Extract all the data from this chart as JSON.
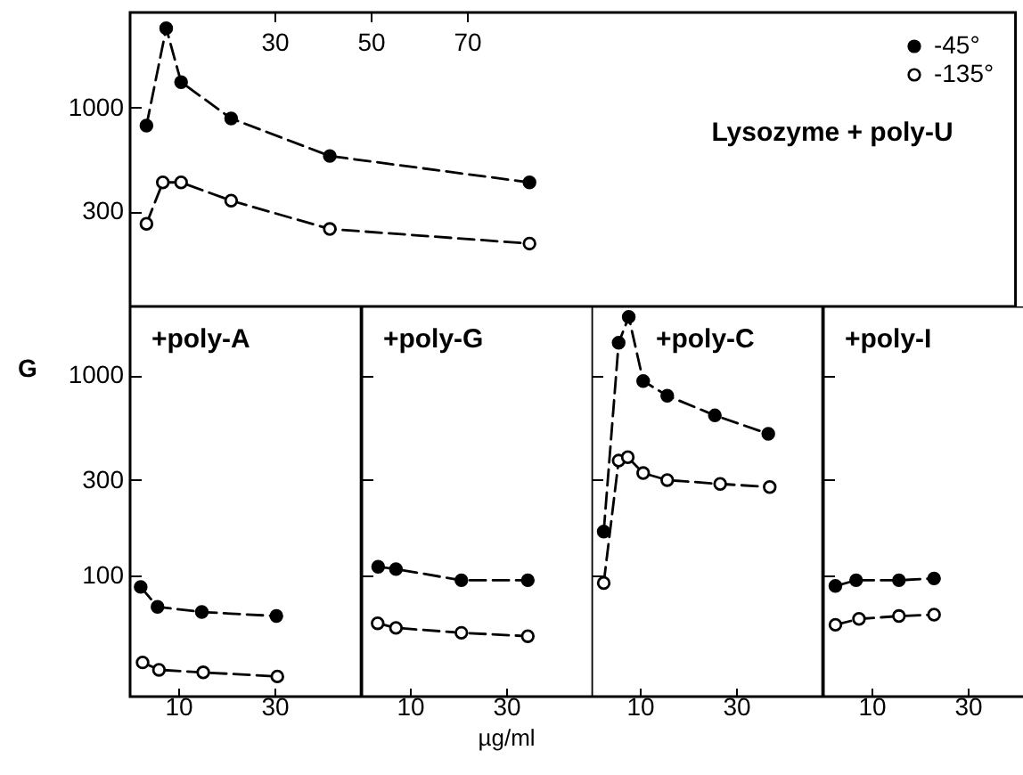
{
  "chart_data": [
    {
      "type": "line",
      "title": "Lysozyme + poly-U",
      "xlim": [
        0,
        184
      ],
      "xticks": [
        30,
        50,
        70
      ],
      "ylim": [
        100,
        3000
      ],
      "yticks": [
        300,
        1000
      ],
      "log": "y",
      "marker": "circle",
      "line_style": "dashed",
      "legend": "top right",
      "series": [
        {
          "name": "-45°",
          "color": "#000000",
          "x": [
            3.4,
            7.5,
            10.6,
            21,
            41.5,
            83
          ],
          "values": [
            810,
            2500,
            1340,
            880,
            570,
            420
          ]
        },
        {
          "name": "-135°",
          "color": "#000000",
          "x": [
            3.4,
            6.8,
            10.6,
            21,
            41.5,
            83
          ],
          "values": [
            260,
            420,
            420,
            340,
            245,
            207
          ]
        }
      ]
    },
    {
      "type": "line",
      "title": "+poly-A",
      "ylabel": "G",
      "xlim": [
        0,
        48
      ],
      "xticks": [
        10,
        30
      ],
      "ylim": [
        25,
        2200
      ],
      "yticks": [
        100,
        300,
        1000
      ],
      "log": "y",
      "marker": "circle",
      "line_style": "dashed",
      "series": [
        {
          "color": "#000000",
          "x": [
            2.2,
            5.7,
            14.9,
            30.4
          ],
          "values": [
            88,
            70,
            66,
            63
          ]
        },
        {
          "color": "#000000",
          "x": [
            2.6,
            6,
            15.2,
            30.6
          ],
          "values": [
            37,
            34,
            33,
            31.5
          ]
        }
      ]
    },
    {
      "type": "line",
      "title": "+poly-G",
      "xlabel": "µg/ml",
      "xlim": [
        0,
        48
      ],
      "xticks": [
        10,
        30
      ],
      "ylim": [
        25,
        2200
      ],
      "yticks": [
        100,
        300,
        1000
      ],
      "log": "y",
      "marker": "circle",
      "line_style": "dashed",
      "tick_labels": "x",
      "series": [
        {
          "color": "#000000",
          "x": [
            3.4,
            7.1,
            20.7,
            34.5
          ],
          "values": [
            111,
            108,
            95,
            95
          ]
        },
        {
          "color": "#000000",
          "x": [
            3.3,
            7.1,
            20.7,
            34.5
          ],
          "values": [
            58,
            55,
            52,
            50
          ]
        }
      ]
    },
    {
      "type": "line",
      "title": "+poly-C",
      "xlim": [
        0,
        48
      ],
      "xticks": [
        10,
        30
      ],
      "ylim": [
        25,
        2200
      ],
      "yticks": [
        100,
        300,
        1000
      ],
      "log": "y",
      "marker": "circle",
      "line_style": "dashed",
      "tick_labels": "x",
      "series": [
        {
          "color": "#000000",
          "x": [
            2.5,
            5.6,
            7.7,
            10.7,
            15.7,
            25.6,
            36.7
          ],
          "values": [
            166,
            1450,
            1950,
            935,
            790,
            630,
            510
          ]
        },
        {
          "color": "#000000",
          "x": [
            2.5,
            5.6,
            7.5,
            10.7,
            15.7,
            26.7,
            37
          ],
          "values": [
            92,
            375,
            390,
            325,
            300,
            287,
            277
          ]
        }
      ]
    },
    {
      "type": "line",
      "title": "+poly-I",
      "xlim": [
        0,
        42
      ],
      "xticks": [
        10,
        30
      ],
      "ylim": [
        25,
        2200
      ],
      "yticks": [
        100,
        300,
        1000
      ],
      "log": "y",
      "marker": "circle",
      "line_style": "dashed",
      "tick_labels": "x",
      "series": [
        {
          "color": "#000000",
          "x": [
            2.5,
            6.8,
            15.7,
            23
          ],
          "values": [
            89,
            95,
            95,
            97
          ]
        },
        {
          "color": "#000000",
          "x": [
            2.5,
            7.4,
            15.7,
            23
          ],
          "values": [
            57,
            61,
            63,
            64
          ]
        }
      ]
    }
  ]
}
